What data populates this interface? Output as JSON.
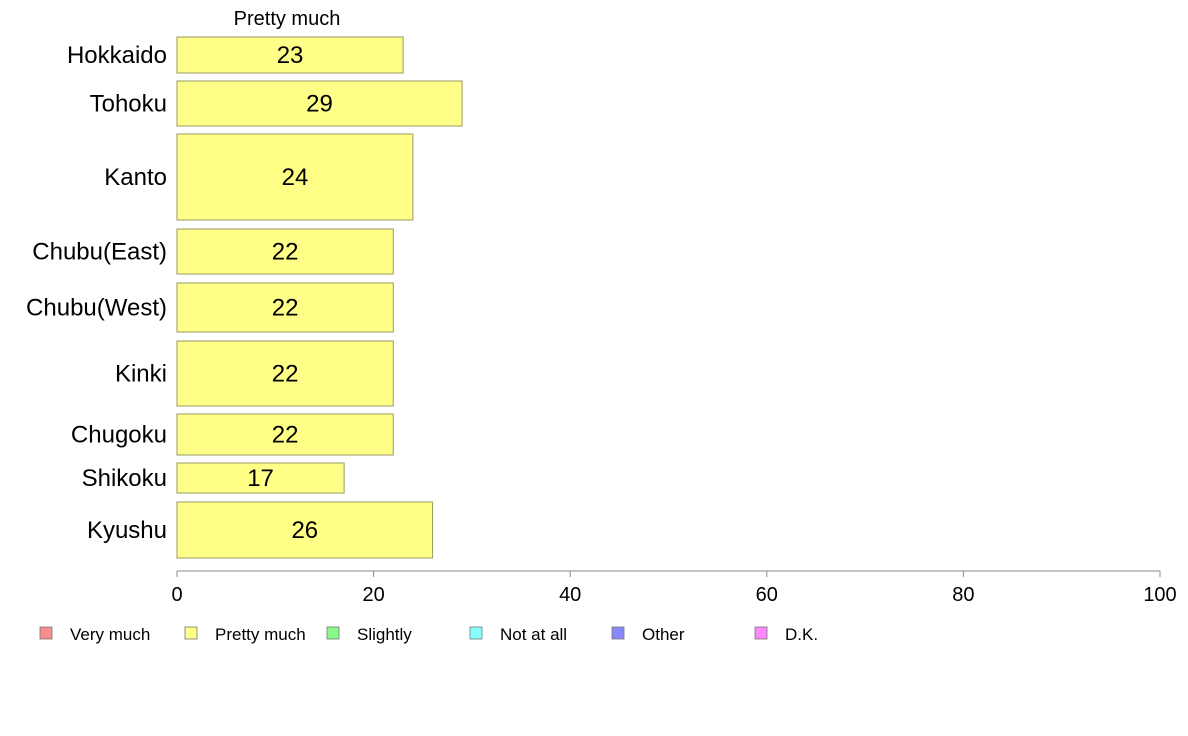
{
  "chart_data": {
    "type": "bar",
    "orientation": "horizontal",
    "title": "Pretty much",
    "categories": [
      "Hokkaido",
      "Tohoku",
      "Kanto",
      "Chubu(East)",
      "Chubu(West)",
      "Kinki",
      "Chugoku",
      "Shikoku",
      "Kyushu"
    ],
    "series": [
      {
        "name": "Pretty much",
        "values": [
          23,
          29,
          24,
          22,
          22,
          22,
          22,
          17,
          26
        ],
        "color": "#ffff88"
      }
    ],
    "xlim": [
      0,
      100
    ],
    "xticks": [
      0,
      20,
      40,
      60,
      80,
      100
    ],
    "grid": false,
    "legend_position": "bottom",
    "legend": [
      {
        "label": "Very much",
        "color": "#f98d8d"
      },
      {
        "label": "Pretty much",
        "color": "#ffff88"
      },
      {
        "label": "Slightly",
        "color": "#88fa88"
      },
      {
        "label": "Not at all",
        "color": "#88ffff"
      },
      {
        "label": "Other",
        "color": "#8888fa"
      },
      {
        "label": "D.K.",
        "color": "#ff88ff"
      }
    ]
  }
}
